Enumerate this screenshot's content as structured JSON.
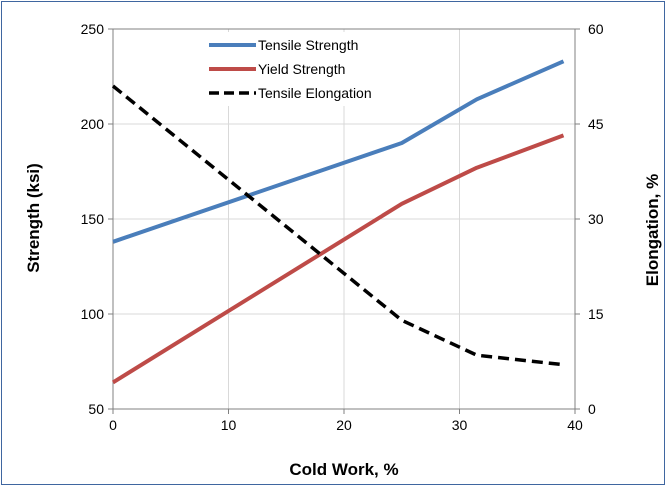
{
  "chart_data": {
    "type": "line",
    "xlabel": "Cold Work, %",
    "ylabel": "Strength (ksi)",
    "y2label": "Elongation, %",
    "xlim": [
      0,
      40
    ],
    "ylim": [
      50,
      250
    ],
    "y2lim": [
      0,
      60
    ],
    "x_ticks": [
      0,
      10,
      20,
      30,
      40
    ],
    "y_ticks": [
      50,
      100,
      150,
      200,
      250
    ],
    "y2_ticks": [
      0,
      15,
      30,
      45,
      60
    ],
    "grid": true,
    "legend_position": "top-center",
    "series": [
      {
        "name": "Tensile Strength",
        "axis": "left",
        "color": "#4a7ebb",
        "style": "solid",
        "x": [
          0,
          25,
          31.5,
          39
        ],
        "y": [
          138,
          190,
          213,
          233
        ]
      },
      {
        "name": "Yield Strength",
        "axis": "left",
        "color": "#be4b48",
        "style": "solid",
        "x": [
          0,
          25,
          31.5,
          39
        ],
        "y": [
          64,
          158,
          177,
          194
        ]
      },
      {
        "name": "Tensile Elongation",
        "axis": "right",
        "color": "#000000",
        "style": "dashed",
        "x": [
          0,
          25,
          31.5,
          39
        ],
        "y": [
          51,
          14,
          8.5,
          7
        ]
      }
    ]
  }
}
